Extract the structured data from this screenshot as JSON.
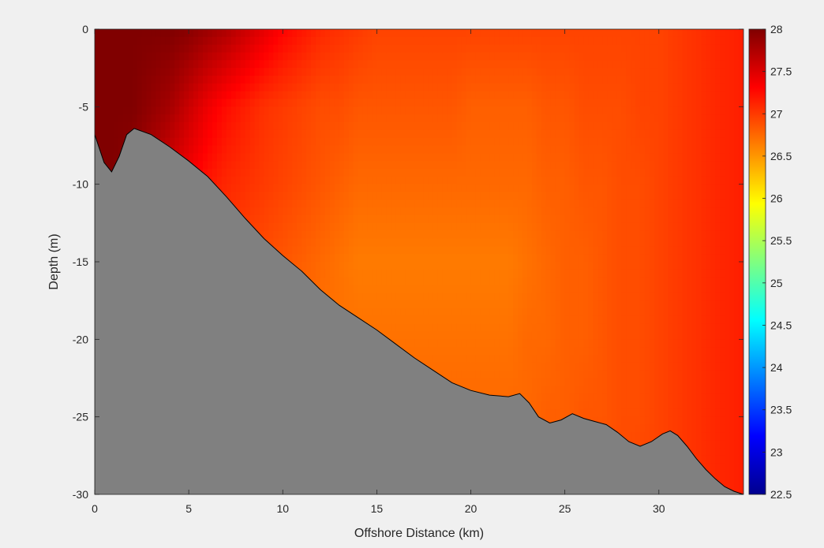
{
  "chart_data": {
    "type": "heatmap",
    "title": "",
    "xlabel": "Offshore Distance (km)",
    "ylabel": "Depth (m)",
    "xlim": [
      0,
      34.5
    ],
    "ylim": [
      -30,
      0
    ],
    "xticks": [
      "0",
      "5",
      "10",
      "15",
      "20",
      "25",
      "30"
    ],
    "yticks": [
      "0",
      "-5",
      "-10",
      "-15",
      "-20",
      "-25",
      "-30"
    ],
    "colorbar": {
      "clim": [
        22.5,
        28
      ],
      "ticks": [
        "28",
        "27.5",
        "27",
        "26.5",
        "26",
        "25.5",
        "25",
        "24.5",
        "24",
        "23.5",
        "23",
        "22.5"
      ],
      "colormap": "jet"
    },
    "field": {
      "x": [
        0,
        1,
        2,
        3,
        4,
        5,
        6,
        7,
        8,
        9,
        10,
        11,
        12,
        13,
        14,
        15,
        16,
        17,
        18,
        19,
        20,
        21,
        22,
        23,
        24,
        25,
        26,
        27,
        28,
        29,
        30,
        31,
        32,
        33,
        34.5
      ],
      "depth": [
        0,
        -5,
        -10,
        -15,
        -20,
        -25,
        -30
      ],
      "temperature": [
        [
          28.0,
          28.0,
          28.0,
          28.0,
          28.0,
          27.95,
          27.85,
          27.75,
          27.6,
          27.45,
          27.3,
          27.2,
          27.1,
          27.05,
          27.0,
          26.95,
          26.95,
          26.95,
          26.95,
          26.95,
          26.95,
          26.95,
          26.95,
          26.95,
          26.95,
          26.95,
          26.95,
          26.95,
          26.95,
          26.95,
          26.95,
          27.0,
          27.05,
          27.1,
          27.15
        ],
        [
          28.0,
          28.0,
          28.0,
          27.9,
          27.8,
          27.6,
          27.4,
          27.25,
          27.15,
          27.05,
          27.0,
          26.95,
          26.9,
          26.9,
          26.85,
          26.85,
          26.85,
          26.85,
          26.85,
          26.85,
          26.8,
          26.8,
          26.8,
          26.8,
          26.85,
          26.85,
          26.9,
          26.9,
          26.9,
          26.95,
          26.95,
          27.0,
          27.05,
          27.1,
          27.15
        ],
        [
          28.0,
          28.0,
          27.9,
          27.7,
          27.5,
          27.35,
          27.2,
          27.1,
          27.05,
          27.0,
          26.95,
          26.9,
          26.85,
          26.8,
          26.75,
          26.75,
          26.75,
          26.75,
          26.75,
          26.75,
          26.75,
          26.75,
          26.75,
          26.75,
          26.8,
          26.8,
          26.85,
          26.85,
          26.9,
          26.9,
          26.95,
          27.0,
          27.05,
          27.1,
          27.15
        ],
        [
          28.0,
          27.8,
          27.6,
          27.4,
          27.2,
          27.1,
          27.05,
          27.0,
          26.95,
          26.9,
          26.85,
          26.8,
          26.75,
          26.7,
          26.65,
          26.65,
          26.65,
          26.65,
          26.65,
          26.65,
          26.65,
          26.65,
          26.65,
          26.7,
          26.75,
          26.8,
          26.8,
          26.85,
          26.9,
          26.9,
          26.95,
          27.0,
          27.05,
          27.1,
          27.15
        ],
        [
          27.7,
          27.5,
          27.3,
          27.15,
          27.05,
          27.0,
          26.95,
          26.9,
          26.85,
          26.8,
          26.75,
          26.75,
          26.7,
          26.7,
          26.7,
          26.7,
          26.7,
          26.7,
          26.7,
          26.7,
          26.7,
          26.7,
          26.7,
          26.75,
          26.75,
          26.8,
          26.8,
          26.85,
          26.9,
          26.9,
          26.95,
          27.0,
          27.05,
          27.1,
          27.15
        ],
        [
          27.5,
          27.3,
          27.15,
          27.05,
          27.0,
          26.95,
          26.9,
          26.85,
          26.8,
          26.8,
          26.75,
          26.75,
          26.75,
          26.75,
          26.75,
          26.75,
          26.75,
          26.75,
          26.75,
          26.75,
          26.75,
          26.75,
          26.75,
          26.75,
          26.8,
          26.8,
          26.85,
          26.85,
          26.9,
          26.9,
          26.95,
          27.0,
          27.05,
          27.1,
          27.15
        ],
        [
          27.4,
          27.2,
          27.1,
          27.0,
          26.95,
          26.9,
          26.85,
          26.85,
          26.8,
          26.8,
          26.8,
          26.8,
          26.8,
          26.8,
          26.8,
          26.8,
          26.8,
          26.8,
          26.8,
          26.8,
          26.8,
          26.8,
          26.8,
          26.8,
          26.8,
          26.85,
          26.85,
          26.9,
          26.9,
          26.95,
          26.95,
          27.0,
          27.05,
          27.1,
          27.15
        ]
      ]
    },
    "seafloor": {
      "x": [
        0,
        0.5,
        0.9,
        1.3,
        1.7,
        2.1,
        3,
        4,
        5,
        6,
        7,
        8,
        9,
        10,
        11,
        12,
        13,
        14,
        15,
        16,
        17,
        18,
        19,
        20,
        21,
        22,
        22.6,
        23.1,
        23.6,
        24.2,
        24.8,
        25.4,
        26,
        26.6,
        27.2,
        27.8,
        28.4,
        29,
        29.6,
        30.2,
        30.6,
        31,
        31.5,
        32,
        32.5,
        33,
        33.5,
        34,
        34.5
      ],
      "depth": [
        -6.8,
        -8.6,
        -9.2,
        -8.2,
        -6.8,
        -6.4,
        -6.8,
        -7.6,
        -8.5,
        -9.5,
        -10.8,
        -12.2,
        -13.5,
        -14.6,
        -15.6,
        -16.8,
        -17.8,
        -18.6,
        -19.4,
        -20.3,
        -21.2,
        -22.0,
        -22.8,
        -23.3,
        -23.6,
        -23.7,
        -23.5,
        -24.1,
        -25.0,
        -25.4,
        -25.2,
        -24.8,
        -25.1,
        -25.3,
        -25.5,
        -26.0,
        -26.6,
        -26.9,
        -26.6,
        -26.1,
        -25.9,
        -26.2,
        -26.9,
        -27.7,
        -28.4,
        -29.0,
        -29.5,
        -29.8,
        -30.0
      ],
      "color": "#808080"
    }
  }
}
